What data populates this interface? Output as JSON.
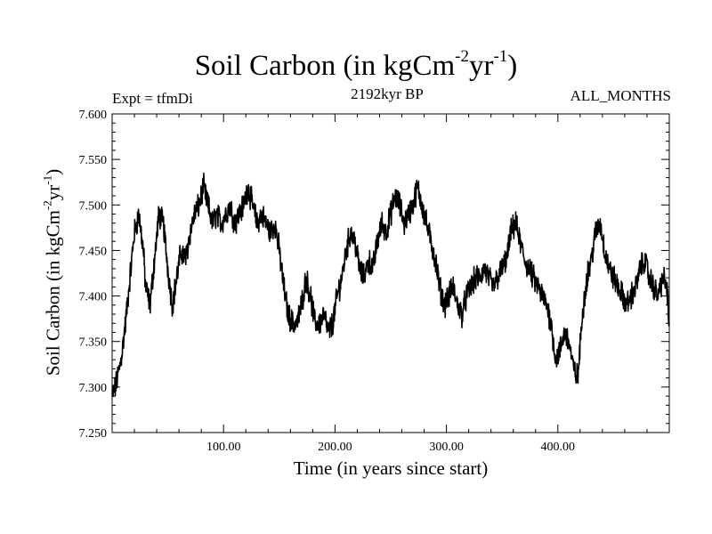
{
  "header": {
    "title_main": "Soil Carbon (in kgCm",
    "title_exp1": "-2",
    "title_mid": "yr",
    "title_exp2": "-1",
    "title_end": ")",
    "expt_label": "Expt = tfmDi",
    "period_label": "2192kyr BP",
    "months_label": "ALL_MONTHS"
  },
  "chart_data": {
    "type": "line",
    "title": "Soil Carbon (in kgCm-2yr-1)",
    "xlabel": "Time (in years since start)",
    "ylabel": "Soil Carbon (in kgCm-2yr-1)",
    "xlim": [
      0,
      500
    ],
    "ylim": [
      7.25,
      7.6
    ],
    "grid": false,
    "x_ticks": [
      100,
      200,
      300,
      400
    ],
    "x_tick_labels": [
      "100.00",
      "200.00",
      "300.00",
      "400.00"
    ],
    "y_ticks": [
      7.25,
      7.3,
      7.35,
      7.4,
      7.45,
      7.5,
      7.55,
      7.6
    ],
    "y_tick_labels": [
      "7.250",
      "7.300",
      "7.350",
      "7.400",
      "7.450",
      "7.500",
      "7.550",
      "7.600"
    ],
    "series": [
      {
        "name": "Soil Carbon",
        "noise_amplitude": 0.011,
        "x": [
          0,
          3,
          8,
          12,
          16,
          20,
          24,
          28,
          30,
          34,
          38,
          42,
          46,
          50,
          54,
          58,
          62,
          66,
          70,
          74,
          78,
          82,
          86,
          90,
          94,
          98,
          102,
          106,
          110,
          114,
          118,
          122,
          126,
          130,
          134,
          138,
          142,
          146,
          150,
          154,
          158,
          162,
          166,
          170,
          174,
          178,
          182,
          186,
          190,
          194,
          198,
          202,
          206,
          210,
          214,
          218,
          222,
          226,
          230,
          234,
          238,
          242,
          246,
          250,
          254,
          258,
          262,
          266,
          270,
          274,
          278,
          282,
          286,
          290,
          294,
          298,
          302,
          306,
          310,
          314,
          318,
          322,
          326,
          330,
          334,
          338,
          342,
          346,
          350,
          354,
          358,
          362,
          366,
          370,
          374,
          378,
          382,
          386,
          390,
          394,
          398,
          402,
          406,
          410,
          414,
          418,
          422,
          426,
          430,
          434,
          438,
          442,
          446,
          450,
          454,
          458,
          462,
          466,
          470,
          474,
          478,
          482,
          486,
          490,
          494,
          498,
          500
        ],
        "values": [
          7.29,
          7.3,
          7.33,
          7.37,
          7.42,
          7.47,
          7.49,
          7.45,
          7.41,
          7.39,
          7.44,
          7.49,
          7.48,
          7.43,
          7.39,
          7.42,
          7.45,
          7.44,
          7.47,
          7.49,
          7.5,
          7.52,
          7.5,
          7.48,
          7.49,
          7.48,
          7.49,
          7.5,
          7.48,
          7.49,
          7.5,
          7.52,
          7.5,
          7.48,
          7.49,
          7.48,
          7.47,
          7.48,
          7.45,
          7.41,
          7.38,
          7.37,
          7.37,
          7.39,
          7.42,
          7.4,
          7.37,
          7.37,
          7.38,
          7.36,
          7.37,
          7.4,
          7.42,
          7.45,
          7.47,
          7.46,
          7.43,
          7.42,
          7.44,
          7.43,
          7.46,
          7.48,
          7.47,
          7.49,
          7.51,
          7.5,
          7.48,
          7.49,
          7.5,
          7.52,
          7.5,
          7.48,
          7.46,
          7.44,
          7.41,
          7.39,
          7.4,
          7.41,
          7.39,
          7.38,
          7.4,
          7.41,
          7.42,
          7.42,
          7.43,
          7.42,
          7.41,
          7.42,
          7.43,
          7.44,
          7.47,
          7.48,
          7.46,
          7.44,
          7.43,
          7.42,
          7.41,
          7.4,
          7.39,
          7.37,
          7.33,
          7.34,
          7.36,
          7.35,
          7.32,
          7.31,
          7.38,
          7.42,
          7.44,
          7.47,
          7.48,
          7.45,
          7.43,
          7.42,
          7.41,
          7.4,
          7.39,
          7.4,
          7.41,
          7.43,
          7.44,
          7.42,
          7.41,
          7.4,
          7.42,
          7.41,
          7.36
        ]
      }
    ]
  }
}
